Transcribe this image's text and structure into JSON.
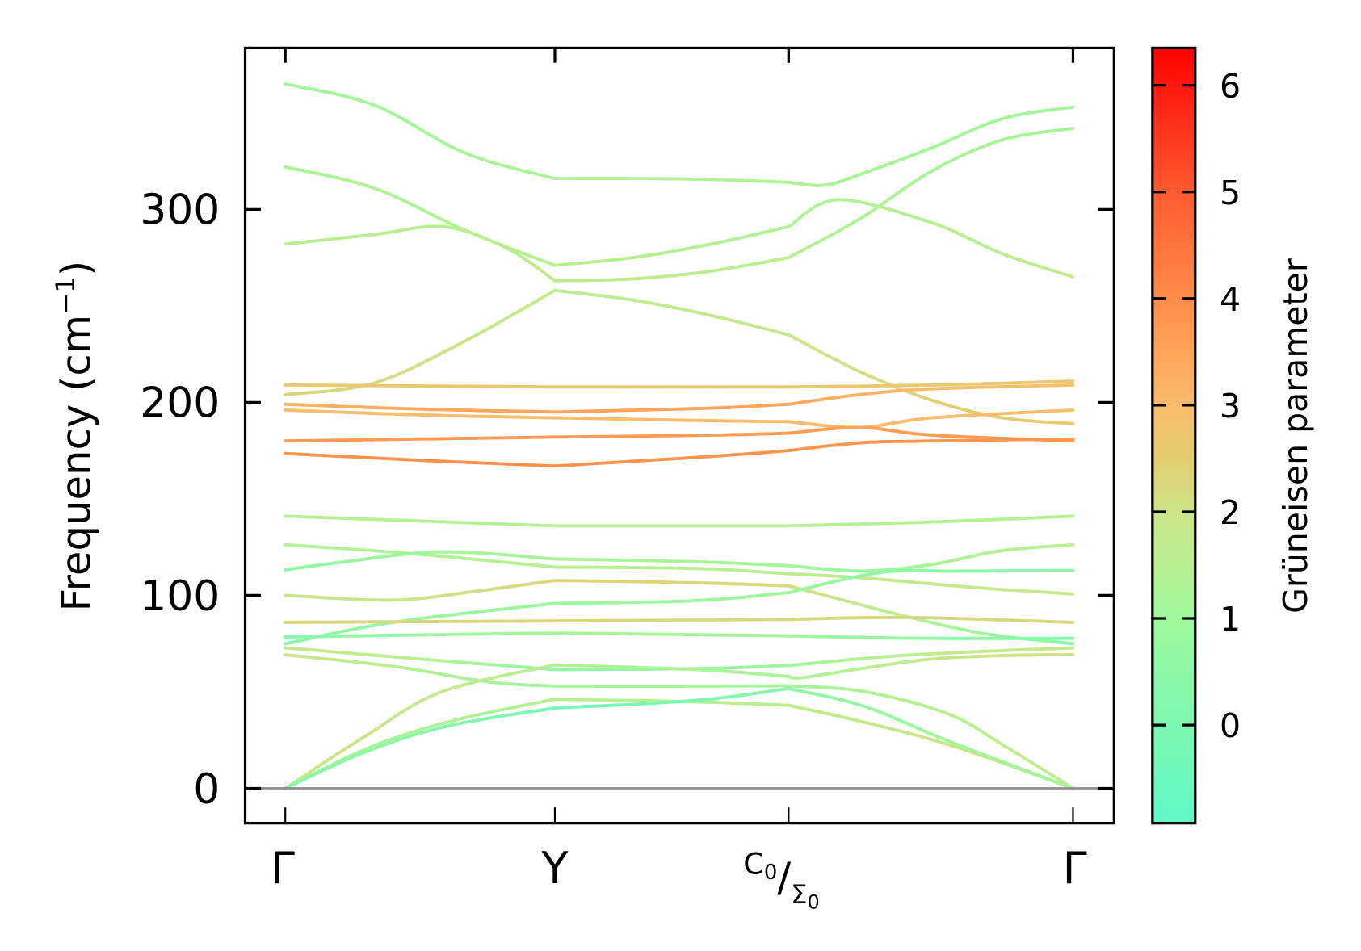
{
  "chart_data": {
    "type": "line",
    "title": "",
    "ylabel": "Frequency (cm⁻¹)",
    "ylabel_main": "Frequency (cm",
    "ylabel_sup": "−1",
    "ylabel_close": ")",
    "ylim": [
      -18,
      384
    ],
    "yticks": [
      0,
      100,
      200,
      300
    ],
    "ytick_labels": [
      "0",
      "100",
      "200",
      "300"
    ],
    "grid": false,
    "kpath": [
      {
        "label": "Γ",
        "k": 0
      },
      {
        "label": "Y",
        "k": 1.0
      },
      {
        "label": "C0/Σ0",
        "k": 1.867,
        "part1": "C",
        "sub1": "0",
        "slash": "/",
        "part2": "Σ",
        "sub2": "0"
      },
      {
        "label": "Γ",
        "k": 2.922
      }
    ],
    "zero_line": {
      "value": 0,
      "color": "#8c8c8c"
    },
    "colorbar": {
      "label": "Grüneisen parameter",
      "range": [
        -0.92,
        6.35
      ],
      "ticks": [
        0,
        1,
        2,
        3,
        4,
        5,
        6
      ],
      "tick_labels": [
        "0",
        "1",
        "2",
        "3",
        "4",
        "5",
        "6"
      ],
      "colormap": [
        {
          "v": -0.92,
          "c": "#5ff8c8"
        },
        {
          "v": 0,
          "c": "#7cf8b0"
        },
        {
          "v": 1,
          "c": "#9ef89c"
        },
        {
          "v": 1.5,
          "c": "#b8f090"
        },
        {
          "v": 2,
          "c": "#cde488"
        },
        {
          "v": 2.5,
          "c": "#e4cc70"
        },
        {
          "v": 3,
          "c": "#f8bc6c"
        },
        {
          "v": 3.5,
          "c": "#ffa458"
        },
        {
          "v": 4,
          "c": "#ff8c48"
        },
        {
          "v": 5,
          "c": "#ff5a30"
        },
        {
          "v": 6.35,
          "c": "#ff0000"
        }
      ]
    },
    "bands": [
      {
        "name": "band-1",
        "points": [
          [
            0,
            365,
            1.1
          ],
          [
            0.33,
            354,
            1.1
          ],
          [
            0.67,
            329,
            1.2
          ],
          [
            1.0,
            316,
            1.3
          ],
          [
            1.29,
            316,
            1.3
          ],
          [
            1.58,
            315.5,
            1.3
          ],
          [
            1.867,
            314,
            1.3
          ],
          [
            2.0,
            312.5,
            1.3
          ],
          [
            2.13,
            318,
            1.2
          ],
          [
            2.4,
            332,
            1.1
          ],
          [
            2.66,
            347,
            1.1
          ],
          [
            2.922,
            353,
            1.1
          ]
        ]
      },
      {
        "name": "band-2",
        "points": [
          [
            0,
            322,
            1.2
          ],
          [
            0.33,
            311,
            1.3
          ],
          [
            0.67,
            289,
            1.4
          ],
          [
            1.0,
            271,
            1.5
          ],
          [
            1.29,
            275,
            1.5
          ],
          [
            1.58,
            282,
            1.4
          ],
          [
            1.867,
            291,
            1.3
          ],
          [
            2.05,
            305,
            1.3
          ],
          [
            2.4,
            293,
            1.5
          ],
          [
            2.66,
            277,
            1.6
          ],
          [
            2.922,
            265,
            1.7
          ]
        ]
      },
      {
        "name": "band-3",
        "points": [
          [
            0,
            282,
            1.5
          ],
          [
            0.33,
            287,
            1.5
          ],
          [
            0.59,
            291,
            1.5
          ],
          [
            0.82,
            280,
            1.6
          ],
          [
            1.0,
            263,
            1.7
          ],
          [
            1.29,
            264,
            1.7
          ],
          [
            1.58,
            268,
            1.6
          ],
          [
            1.867,
            275,
            1.5
          ],
          [
            2.13,
            295,
            1.3
          ],
          [
            2.4,
            320,
            1.2
          ],
          [
            2.66,
            336,
            1.2
          ],
          [
            2.922,
            342,
            1.2
          ]
        ]
      },
      {
        "name": "band-4",
        "points": [
          [
            0,
            204,
            2.4
          ],
          [
            0.33,
            210,
            2.2
          ],
          [
            0.67,
            232,
            2.0
          ],
          [
            1.0,
            258,
            1.6
          ],
          [
            1.29,
            253,
            1.6
          ],
          [
            1.58,
            245,
            1.7
          ],
          [
            1.867,
            235,
            1.8
          ],
          [
            2.13,
            216,
            2.1
          ],
          [
            2.4,
            201,
            2.4
          ],
          [
            2.66,
            192,
            2.5
          ],
          [
            2.922,
            189,
            2.6
          ]
        ]
      },
      {
        "name": "band-5",
        "points": [
          [
            0,
            209,
            2.6
          ],
          [
            1.0,
            208,
            2.6
          ],
          [
            1.867,
            208,
            2.6
          ],
          [
            2.4,
            209,
            2.6
          ],
          [
            2.922,
            211,
            2.6
          ]
        ]
      },
      {
        "name": "band-6",
        "points": [
          [
            0,
            199,
            3.2
          ],
          [
            0.5,
            196.5,
            3.4
          ],
          [
            1.0,
            195,
            3.5
          ],
          [
            1.58,
            197,
            3.5
          ],
          [
            1.867,
            199,
            3.4
          ],
          [
            2.13,
            204,
            3.2
          ],
          [
            2.4,
            207,
            3.0
          ],
          [
            2.922,
            209,
            2.8
          ]
        ]
      },
      {
        "name": "band-7",
        "points": [
          [
            0,
            196,
            2.9
          ],
          [
            0.5,
            193.5,
            3.0
          ],
          [
            1.0,
            192,
            3.0
          ],
          [
            1.58,
            190.5,
            3.0
          ],
          [
            1.867,
            190,
            3.0
          ],
          [
            2.13,
            187,
            3.1
          ],
          [
            2.4,
            192,
            3.0
          ],
          [
            2.922,
            196,
            2.9
          ]
        ]
      },
      {
        "name": "band-8",
        "points": [
          [
            0,
            180,
            3.7
          ],
          [
            0.5,
            181,
            3.7
          ],
          [
            1.0,
            182,
            3.7
          ],
          [
            1.58,
            183,
            3.7
          ],
          [
            1.867,
            184,
            3.7
          ],
          [
            2.13,
            187,
            3.5
          ],
          [
            2.4,
            183,
            3.7
          ],
          [
            2.922,
            180,
            3.8
          ]
        ]
      },
      {
        "name": "band-9",
        "points": [
          [
            0,
            173.5,
            3.8
          ],
          [
            0.5,
            170,
            3.9
          ],
          [
            1.0,
            167,
            3.9
          ],
          [
            1.58,
            172,
            3.8
          ],
          [
            1.867,
            175,
            3.8
          ],
          [
            2.13,
            179,
            3.8
          ],
          [
            2.4,
            180,
            3.8
          ],
          [
            2.922,
            181,
            3.8
          ]
        ]
      },
      {
        "name": "band-10",
        "points": [
          [
            0,
            141,
            1.4
          ],
          [
            1.0,
            136,
            1.4
          ],
          [
            1.867,
            136,
            1.4
          ],
          [
            2.4,
            138,
            1.4
          ],
          [
            2.922,
            141,
            1.4
          ]
        ]
      },
      {
        "name": "band-11",
        "points": [
          [
            0,
            126.2,
            1.4
          ],
          [
            0.47,
            121.6,
            1.3
          ],
          [
            1.0,
            114.6,
            1.5
          ],
          [
            1.52,
            113.9,
            1.5
          ],
          [
            1.867,
            111.2,
            1.6
          ],
          [
            2.145,
            109,
            1.7
          ],
          [
            2.56,
            104,
            1.8
          ],
          [
            2.922,
            100.7,
            1.8
          ]
        ]
      },
      {
        "name": "band-12",
        "points": [
          [
            0,
            113.2,
            0.5
          ],
          [
            0.2,
            117,
            0.7
          ],
          [
            0.58,
            122.5,
            1.1
          ],
          [
            1.0,
            118.8,
            1.2
          ],
          [
            1.52,
            117.4,
            1.2
          ],
          [
            1.867,
            115.3,
            1.1
          ],
          [
            2.145,
            112.6,
            0.8
          ],
          [
            2.4,
            116,
            1.2
          ],
          [
            2.65,
            123,
            1.4
          ],
          [
            2.922,
            126.2,
            1.5
          ]
        ]
      },
      {
        "name": "band-13",
        "points": [
          [
            0,
            100,
            1.9
          ],
          [
            0.4,
            97.5,
            1.9
          ],
          [
            0.7,
            102,
            2.1
          ],
          [
            1.0,
            107.7,
            2.3
          ],
          [
            1.52,
            106.5,
            2.3
          ],
          [
            1.867,
            104.9,
            2.2
          ],
          [
            2.04,
            98.6,
            2.0
          ],
          [
            2.31,
            88.8,
            1.5
          ],
          [
            2.6,
            80,
            0.8
          ],
          [
            2.922,
            74.9,
            0.5
          ]
        ]
      },
      {
        "name": "band-14",
        "points": [
          [
            0,
            74.9,
            0.3
          ],
          [
            0.4,
            86,
            0.8
          ],
          [
            1.0,
            95.8,
            0.9
          ],
          [
            1.52,
            97.2,
            0.9
          ],
          [
            1.867,
            101.4,
            1.0
          ],
          [
            2.21,
            111.9,
            0.6
          ],
          [
            2.5,
            112.5,
            0.4
          ],
          [
            2.922,
            112.8,
            0.4
          ]
        ]
      },
      {
        "name": "band-15",
        "points": [
          [
            0,
            86,
            2.3
          ],
          [
            1.0,
            86.7,
            2.3
          ],
          [
            1.867,
            87.5,
            2.2
          ],
          [
            2.31,
            88.5,
            2.2
          ],
          [
            2.922,
            86,
            2.3
          ]
        ]
      },
      {
        "name": "band-16",
        "points": [
          [
            0,
            78.4,
            0.2
          ],
          [
            0.5,
            79.5,
            0.9
          ],
          [
            1.0,
            80.5,
            1.2
          ],
          [
            1.867,
            79,
            1.1
          ],
          [
            2.31,
            77.8,
            0.6
          ],
          [
            2.922,
            77.7,
            0.3
          ]
        ]
      },
      {
        "name": "band-17",
        "points": [
          [
            0,
            72.8,
            1.9
          ],
          [
            0.5,
            67,
            1.5
          ],
          [
            1.0,
            61.5,
            0.6
          ],
          [
            1.52,
            62,
            0.7
          ],
          [
            1.867,
            63.6,
            1.0
          ],
          [
            2.31,
            69,
            1.6
          ],
          [
            2.922,
            72.8,
            1.9
          ]
        ]
      },
      {
        "name": "band-18",
        "points": [
          [
            0,
            69.2,
            2.0
          ],
          [
            0.41,
            63,
            1.5
          ],
          [
            0.75,
            55.2,
            1.1
          ],
          [
            1.0,
            52.9,
            1.1
          ],
          [
            1.52,
            52.9,
            1.1
          ],
          [
            1.867,
            53.1,
            1.1
          ],
          [
            2.145,
            50.2,
            1.3
          ],
          [
            2.46,
            38.5,
            1.5
          ],
          [
            2.67,
            21.8,
            1.6
          ],
          [
            2.922,
            0,
            1.7
          ]
        ]
      },
      {
        "name": "band-19",
        "points": [
          [
            0,
            0,
            2.0
          ],
          [
            0.3,
            27.3,
            2.0
          ],
          [
            0.58,
            50,
            1.8
          ],
          [
            1.0,
            63.9,
            1.4
          ],
          [
            1.52,
            61.5,
            1.2
          ],
          [
            1.867,
            58,
            1.3
          ],
          [
            1.915,
            57.3,
            1.3
          ],
          [
            2.145,
            62.2,
            1.5
          ],
          [
            2.4,
            67,
            1.8
          ],
          [
            2.7,
            68.9,
            2.0
          ],
          [
            2.922,
            69.2,
            2.1
          ]
        ]
      },
      {
        "name": "band-20",
        "points": [
          [
            0,
            0,
            1.0
          ],
          [
            0.3,
            20.4,
            1.2
          ],
          [
            0.6,
            34.3,
            1.3
          ],
          [
            1.0,
            46.2,
            1.4
          ],
          [
            1.52,
            44.8,
            1.5
          ],
          [
            1.867,
            43,
            1.6
          ],
          [
            2.145,
            34.3,
            1.8
          ],
          [
            2.48,
            21.8,
            2.0
          ],
          [
            2.922,
            0,
            2.1
          ]
        ]
      },
      {
        "name": "band-21",
        "points": [
          [
            0,
            0,
            0.2
          ],
          [
            0.3,
            19,
            0.6
          ],
          [
            0.6,
            32.2,
            0.3
          ],
          [
            1.0,
            41.6,
            -0.3
          ],
          [
            1.52,
            45.5,
            0.0
          ],
          [
            1.867,
            51.7,
            0.4
          ],
          [
            2.145,
            42.6,
            0.8
          ],
          [
            2.46,
            24.5,
            1.0
          ],
          [
            2.922,
            0,
            1.2
          ]
        ]
      }
    ]
  }
}
